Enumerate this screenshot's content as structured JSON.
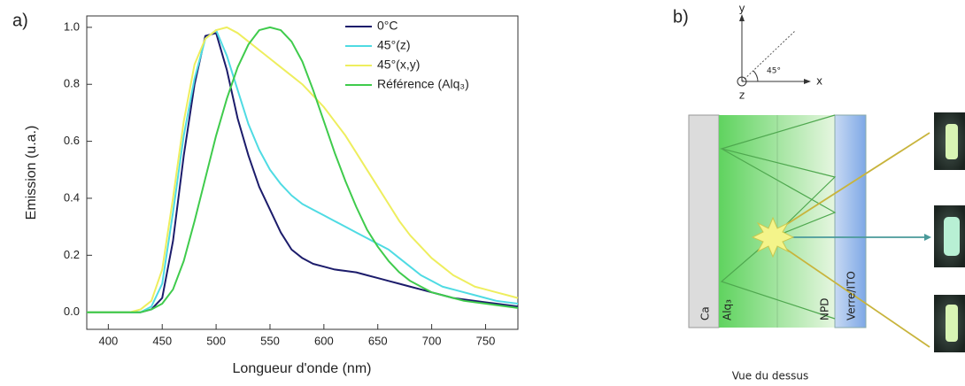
{
  "chart_data": {
    "type": "line",
    "xlabel": "Longueur d'onde (nm)",
    "ylabel": "Emission (u.a.)",
    "x": [
      380,
      390,
      400,
      410,
      420,
      430,
      440,
      450,
      460,
      470,
      480,
      490,
      500,
      510,
      520,
      530,
      540,
      550,
      560,
      570,
      580,
      590,
      600,
      610,
      620,
      630,
      640,
      650,
      660,
      670,
      680,
      690,
      700,
      710,
      720,
      730,
      740,
      750,
      760,
      770,
      780
    ],
    "series": [
      {
        "name": "0°C",
        "color": "#1c1c6b",
        "values": [
          0,
          0,
          0,
          0,
          0,
          0,
          0.01,
          0.05,
          0.25,
          0.55,
          0.8,
          0.97,
          0.98,
          0.85,
          0.68,
          0.55,
          0.44,
          0.36,
          0.28,
          0.22,
          0.19,
          0.17,
          0.16,
          0.15,
          0.145,
          0.14,
          0.13,
          0.12,
          0.11,
          0.1,
          0.09,
          0.08,
          0.07,
          0.06,
          0.05,
          0.045,
          0.04,
          0.035,
          0.03,
          0.025,
          0.02
        ]
      },
      {
        "name": "45°(z)",
        "color": "#4fdbe3",
        "values": [
          0,
          0,
          0,
          0,
          0,
          0,
          0.02,
          0.1,
          0.35,
          0.62,
          0.82,
          0.96,
          0.99,
          0.9,
          0.78,
          0.66,
          0.57,
          0.5,
          0.45,
          0.41,
          0.38,
          0.36,
          0.34,
          0.32,
          0.3,
          0.28,
          0.26,
          0.24,
          0.22,
          0.19,
          0.16,
          0.13,
          0.11,
          0.09,
          0.08,
          0.07,
          0.06,
          0.05,
          0.04,
          0.035,
          0.03
        ]
      },
      {
        "name": "45°(x,y)",
        "color": "#eeee5e",
        "values": [
          0,
          0,
          0,
          0,
          0,
          0.01,
          0.04,
          0.15,
          0.4,
          0.67,
          0.87,
          0.96,
          0.99,
          1.0,
          0.98,
          0.95,
          0.92,
          0.89,
          0.86,
          0.83,
          0.8,
          0.76,
          0.72,
          0.67,
          0.62,
          0.56,
          0.5,
          0.44,
          0.38,
          0.32,
          0.27,
          0.23,
          0.19,
          0.16,
          0.13,
          0.11,
          0.09,
          0.08,
          0.07,
          0.06,
          0.05
        ]
      },
      {
        "name": "Référence (Alq₃)",
        "color": "#3fcb4c",
        "values": [
          0,
          0,
          0,
          0,
          0,
          0,
          0.01,
          0.03,
          0.08,
          0.18,
          0.32,
          0.47,
          0.62,
          0.75,
          0.86,
          0.94,
          0.99,
          1.0,
          0.99,
          0.95,
          0.88,
          0.78,
          0.67,
          0.56,
          0.46,
          0.37,
          0.29,
          0.23,
          0.18,
          0.14,
          0.11,
          0.09,
          0.07,
          0.06,
          0.05,
          0.04,
          0.035,
          0.03,
          0.025,
          0.02,
          0.015
        ]
      }
    ],
    "xlim": [
      380,
      780
    ],
    "xticks": [
      400,
      450,
      500,
      550,
      600,
      650,
      700,
      750
    ],
    "ylim": [
      -0.06,
      1.04
    ],
    "yticks": [
      {
        "value": 0,
        "label": "0.0"
      },
      0.2,
      0.4,
      0.6,
      0.8,
      {
        "value": 1,
        "label": "1.0"
      }
    ],
    "grid": false,
    "legend": "upper right"
  },
  "panel_labels": {
    "a": "a)",
    "b": "b)"
  },
  "diagram": {
    "axes": {
      "y": "y",
      "x": "x",
      "z": "z",
      "angle": "45°"
    },
    "layers": [
      "Ca",
      "Alq₃",
      "NPD",
      "Verre/ITO"
    ],
    "caption": "Vue du dessus"
  }
}
